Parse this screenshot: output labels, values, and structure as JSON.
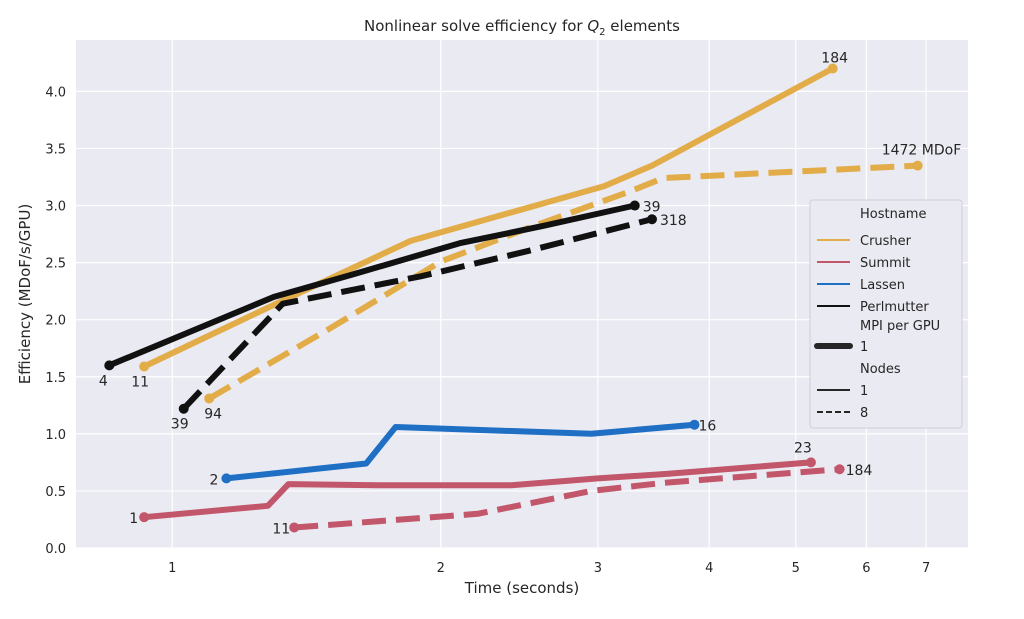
{
  "chart_data": {
    "type": "line",
    "title_prefix": "Nonlinear solve efficiency for ",
    "title_var": "Q",
    "title_sub": "2",
    "title_suffix": " elements",
    "xlabel": "Time (seconds)",
    "ylabel": "Efficiency (MDoF/s/GPU)",
    "x_scale": "log",
    "xlim": [
      0.78,
      7.8
    ],
    "ylim": [
      0.0,
      4.45
    ],
    "xticks": [
      1,
      2,
      3,
      4,
      5,
      6,
      7
    ],
    "yticks": [
      0.0,
      0.5,
      1.0,
      1.5,
      2.0,
      2.5,
      3.0,
      3.5,
      4.0
    ],
    "grid": true,
    "legend_position": "right",
    "legend": {
      "title_hostname": "Hostname",
      "hosts": [
        {
          "name": "Crusher",
          "color": "#e2ad48"
        },
        {
          "name": "Summit",
          "color": "#c2566a"
        },
        {
          "name": "Lassen",
          "color": "#1f6fc4"
        },
        {
          "name": "Perlmutter",
          "color": "#111111"
        }
      ],
      "title_mpi": "MPI per GPU",
      "mpi_values": [
        "1"
      ],
      "title_nodes": "Nodes",
      "nodes_values": [
        "1",
        "8"
      ]
    },
    "series": [
      {
        "host": "Crusher",
        "nodes": "1",
        "color": "#e2ad48",
        "x": [
          0.93,
          1.3,
          1.85,
          3.05,
          3.45,
          5.5
        ],
        "y": [
          1.59,
          2.13,
          2.69,
          3.17,
          3.35,
          4.2
        ],
        "start_label": "11",
        "end_label": "184"
      },
      {
        "host": "Crusher",
        "nodes": "8",
        "color": "#e2ad48",
        "x": [
          1.1,
          1.5,
          2.0,
          2.5,
          3.25,
          3.55,
          6.85
        ],
        "y": [
          1.31,
          1.92,
          2.51,
          2.8,
          3.12,
          3.24,
          3.35
        ],
        "start_label": "94",
        "end_label": "1472 MDoF"
      },
      {
        "host": "Perlmutter",
        "nodes": "1",
        "color": "#111111",
        "x": [
          0.85,
          1.3,
          1.6,
          2.1,
          2.6,
          3.3
        ],
        "y": [
          1.6,
          2.2,
          2.4,
          2.67,
          2.82,
          3.0
        ],
        "start_label": "4",
        "end_label": "39"
      },
      {
        "host": "Perlmutter",
        "nodes": "8",
        "color": "#111111",
        "x": [
          1.03,
          1.33,
          1.9,
          2.5,
          3.45
        ],
        "y": [
          1.22,
          2.14,
          2.38,
          2.6,
          2.88
        ],
        "start_label": "39",
        "end_label": "318"
      },
      {
        "host": "Lassen",
        "nodes": "1",
        "color": "#1f6fc4",
        "x": [
          1.15,
          1.65,
          1.78,
          2.95,
          3.85
        ],
        "y": [
          0.61,
          0.74,
          1.06,
          1.0,
          1.08
        ],
        "start_label": "2",
        "end_label": "16"
      },
      {
        "host": "Summit",
        "nodes": "1",
        "color": "#c2566a",
        "x": [
          0.93,
          1.28,
          1.35,
          1.7,
          2.4,
          3.0,
          3.6,
          5.2
        ],
        "y": [
          0.27,
          0.37,
          0.56,
          0.55,
          0.55,
          0.61,
          0.65,
          0.75
        ],
        "start_label": "1",
        "end_label": "23"
      },
      {
        "host": "Summit",
        "nodes": "8",
        "color": "#c2566a",
        "x": [
          1.37,
          2.2,
          2.95,
          3.55,
          5.6
        ],
        "y": [
          0.18,
          0.3,
          0.5,
          0.57,
          0.69
        ],
        "start_label": "11",
        "end_label": "184"
      }
    ]
  }
}
